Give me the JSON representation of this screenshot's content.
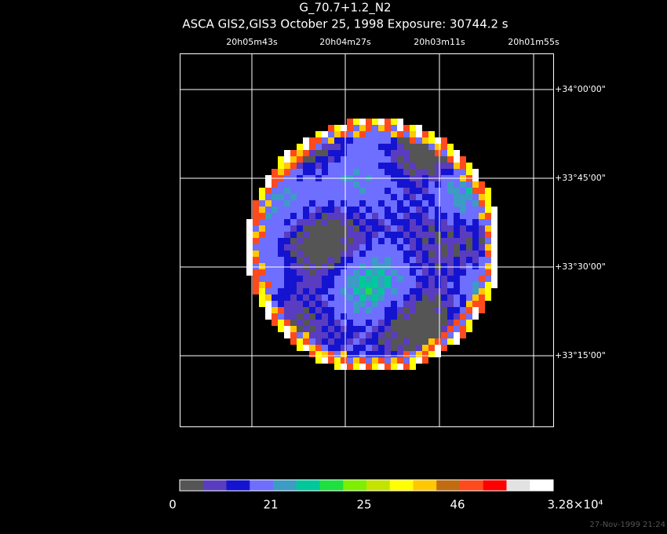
{
  "header": {
    "title": "G_70.7+1.2_N2",
    "subtitle": "ASCA GIS2,GIS3 October 25, 1998 Exposure: 30744.2 s"
  },
  "ra_labels": [
    "20h05m43s",
    "20h04m27s",
    "20h03m11s",
    "20h01m55s"
  ],
  "dec_labels": [
    "+34°00'00\"",
    "+33°45'00\"",
    "+33°30'00\"",
    "+33°15'00\""
  ],
  "colorbar": {
    "colors": [
      "#555555",
      "#5a3cc0",
      "#1414d0",
      "#6e6eff",
      "#3c9cc4",
      "#00c89a",
      "#1ee040",
      "#7cf000",
      "#c4e400",
      "#ffff00",
      "#ffc800",
      "#c06c10",
      "#ff4a1e",
      "#ff0000",
      "#e2e2e2",
      "#ffffff"
    ],
    "labels": [
      "0",
      "21",
      "25",
      "46",
      "3.28×10⁴"
    ]
  },
  "footer": {
    "timestamp": "27-Nov-1999 21:24"
  }
}
